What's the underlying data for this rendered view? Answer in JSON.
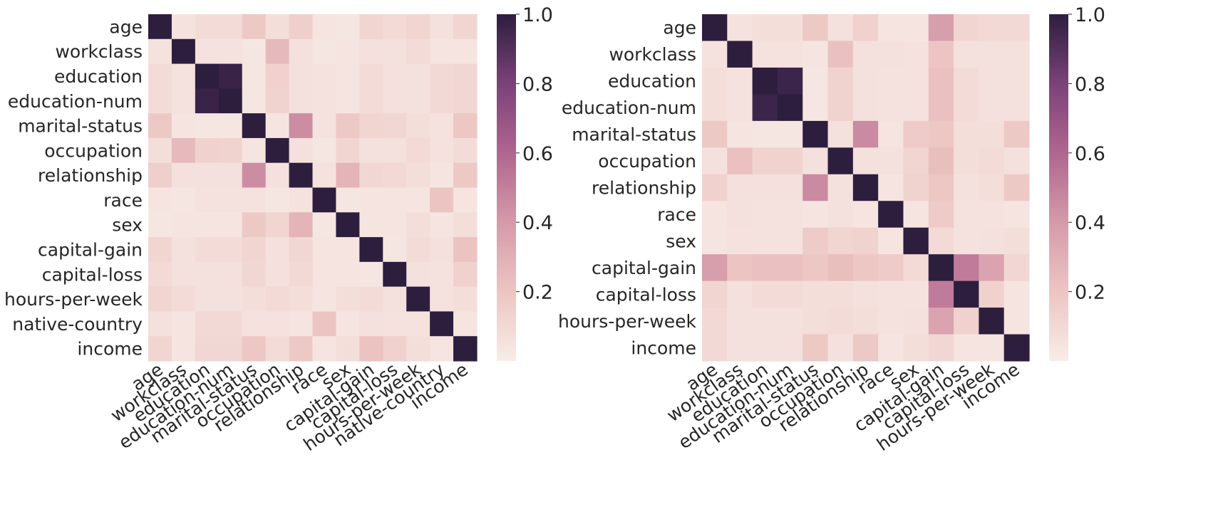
{
  "chart_data": [
    {
      "type": "heatmap",
      "labels": [
        "age",
        "workclass",
        "education",
        "education-num",
        "marital-status",
        "occupation",
        "relationship",
        "race",
        "sex",
        "capital-gain",
        "capital-loss",
        "hours-per-week",
        "native-country",
        "income"
      ],
      "matrix": [
        [
          1.0,
          0.05,
          0.08,
          0.08,
          0.18,
          0.07,
          0.15,
          0.04,
          0.03,
          0.12,
          0.09,
          0.12,
          0.06,
          0.12
        ],
        [
          0.05,
          1.0,
          0.05,
          0.05,
          0.03,
          0.25,
          0.06,
          0.03,
          0.04,
          0.06,
          0.06,
          0.08,
          0.04,
          0.04
        ],
        [
          0.08,
          0.05,
          1.0,
          0.97,
          0.03,
          0.14,
          0.06,
          0.05,
          0.04,
          0.08,
          0.06,
          0.06,
          0.1,
          0.11
        ],
        [
          0.08,
          0.05,
          0.97,
          1.0,
          0.03,
          0.13,
          0.06,
          0.05,
          0.04,
          0.08,
          0.06,
          0.06,
          0.1,
          0.11
        ],
        [
          0.18,
          0.04,
          0.03,
          0.03,
          1.0,
          0.04,
          0.45,
          0.05,
          0.18,
          0.12,
          0.11,
          0.07,
          0.05,
          0.19
        ],
        [
          0.07,
          0.25,
          0.14,
          0.13,
          0.04,
          1.0,
          0.06,
          0.03,
          0.12,
          0.06,
          0.06,
          0.09,
          0.05,
          0.08
        ],
        [
          0.15,
          0.06,
          0.06,
          0.06,
          0.45,
          0.06,
          1.0,
          0.05,
          0.28,
          0.11,
          0.1,
          0.07,
          0.04,
          0.18
        ],
        [
          0.04,
          0.03,
          0.05,
          0.05,
          0.05,
          0.03,
          0.05,
          1.0,
          0.03,
          0.04,
          0.04,
          0.04,
          0.2,
          0.04
        ],
        [
          0.03,
          0.04,
          0.04,
          0.04,
          0.18,
          0.12,
          0.28,
          0.03,
          1.0,
          0.04,
          0.04,
          0.07,
          0.04,
          0.07
        ],
        [
          0.12,
          0.06,
          0.08,
          0.08,
          0.12,
          0.06,
          0.11,
          0.04,
          0.04,
          1.0,
          0.03,
          0.08,
          0.06,
          0.21
        ],
        [
          0.09,
          0.06,
          0.06,
          0.06,
          0.11,
          0.06,
          0.1,
          0.04,
          0.04,
          0.03,
          1.0,
          0.06,
          0.05,
          0.14
        ],
        [
          0.12,
          0.08,
          0.06,
          0.06,
          0.07,
          0.09,
          0.07,
          0.04,
          0.07,
          0.08,
          0.06,
          1.0,
          0.05,
          0.07
        ],
        [
          0.06,
          0.04,
          0.1,
          0.1,
          0.05,
          0.05,
          0.04,
          0.2,
          0.04,
          0.06,
          0.05,
          0.05,
          1.0,
          0.04
        ],
        [
          0.12,
          0.04,
          0.11,
          0.11,
          0.19,
          0.08,
          0.18,
          0.04,
          0.07,
          0.21,
          0.14,
          0.07,
          0.04,
          1.0
        ]
      ],
      "colorbar": {
        "ticks": [
          "0.2",
          "0.4",
          "0.6",
          "0.8",
          "1.0"
        ],
        "range": [
          0.0,
          1.0
        ]
      }
    },
    {
      "type": "heatmap",
      "labels": [
        "age",
        "workclass",
        "education",
        "education-num",
        "marital-status",
        "occupation",
        "relationship",
        "race",
        "sex",
        "capital-gain",
        "capital-loss",
        "hours-per-week",
        "income"
      ],
      "matrix": [
        [
          1.0,
          0.05,
          0.07,
          0.07,
          0.18,
          0.06,
          0.14,
          0.04,
          0.04,
          0.38,
          0.12,
          0.1,
          0.1
        ],
        [
          0.05,
          1.0,
          0.05,
          0.05,
          0.04,
          0.22,
          0.06,
          0.06,
          0.05,
          0.2,
          0.06,
          0.06,
          0.06
        ],
        [
          0.07,
          0.05,
          1.0,
          0.96,
          0.03,
          0.13,
          0.06,
          0.05,
          0.05,
          0.22,
          0.08,
          0.06,
          0.06
        ],
        [
          0.07,
          0.05,
          0.96,
          1.0,
          0.03,
          0.13,
          0.06,
          0.05,
          0.05,
          0.22,
          0.08,
          0.06,
          0.06
        ],
        [
          0.18,
          0.04,
          0.03,
          0.03,
          1.0,
          0.06,
          0.46,
          0.04,
          0.17,
          0.19,
          0.07,
          0.07,
          0.18
        ],
        [
          0.06,
          0.22,
          0.13,
          0.13,
          0.06,
          1.0,
          0.06,
          0.06,
          0.12,
          0.23,
          0.07,
          0.08,
          0.06
        ],
        [
          0.14,
          0.06,
          0.06,
          0.06,
          0.46,
          0.06,
          1.0,
          0.04,
          0.13,
          0.19,
          0.06,
          0.07,
          0.18
        ],
        [
          0.04,
          0.06,
          0.05,
          0.05,
          0.04,
          0.06,
          0.04,
          1.0,
          0.04,
          0.17,
          0.05,
          0.05,
          0.04
        ],
        [
          0.04,
          0.05,
          0.05,
          0.05,
          0.17,
          0.12,
          0.13,
          0.04,
          1.0,
          0.09,
          0.05,
          0.06,
          0.07
        ],
        [
          0.38,
          0.2,
          0.22,
          0.22,
          0.19,
          0.23,
          0.19,
          0.17,
          0.09,
          1.0,
          0.52,
          0.36,
          0.11
        ],
        [
          0.12,
          0.06,
          0.08,
          0.08,
          0.07,
          0.07,
          0.06,
          0.05,
          0.05,
          0.52,
          1.0,
          0.14,
          0.04
        ],
        [
          0.1,
          0.06,
          0.06,
          0.06,
          0.07,
          0.08,
          0.07,
          0.05,
          0.06,
          0.36,
          0.14,
          1.0,
          0.04
        ],
        [
          0.1,
          0.06,
          0.06,
          0.06,
          0.18,
          0.06,
          0.18,
          0.04,
          0.07,
          0.11,
          0.04,
          0.04,
          1.0
        ]
      ],
      "colorbar": {
        "ticks": [
          "0.2",
          "0.4",
          "0.6",
          "0.8",
          "1.0"
        ],
        "range": [
          0.0,
          1.0
        ]
      }
    }
  ]
}
